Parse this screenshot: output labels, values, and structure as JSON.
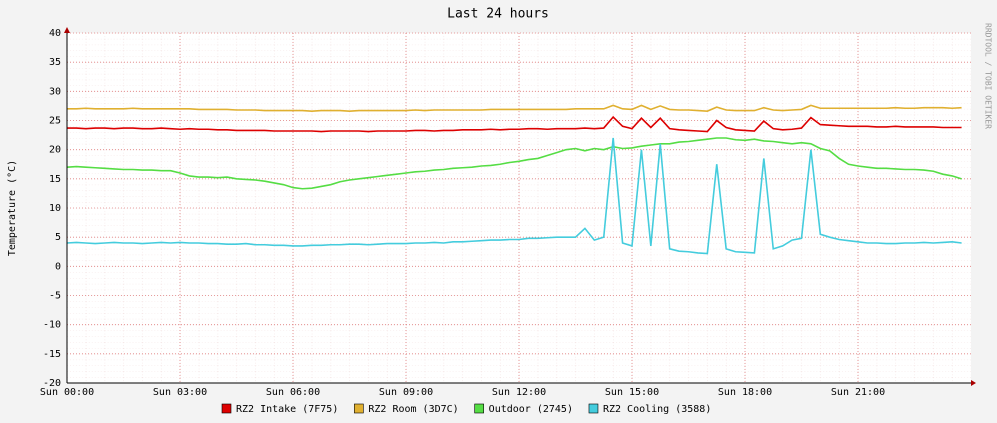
{
  "chart_data": {
    "type": "line",
    "title": "Last 24 hours",
    "y_label": "Temperature (°C)",
    "side_label": "RRDTOOL / TOBI OETIKER",
    "x": [
      0,
      0.25,
      0.5,
      0.75,
      1,
      1.25,
      1.5,
      1.75,
      2,
      2.25,
      2.5,
      2.75,
      3,
      3.25,
      3.5,
      3.75,
      4,
      4.25,
      4.5,
      4.75,
      5,
      5.25,
      5.5,
      5.75,
      6,
      6.25,
      6.5,
      6.75,
      7,
      7.25,
      7.5,
      7.75,
      8,
      8.25,
      8.5,
      8.75,
      9,
      9.25,
      9.5,
      9.75,
      10,
      10.25,
      10.5,
      10.75,
      11,
      11.25,
      11.5,
      11.75,
      12,
      12.25,
      12.5,
      12.75,
      13,
      13.25,
      13.5,
      13.75,
      14,
      14.25,
      14.5,
      14.75,
      15,
      15.25,
      15.5,
      15.75,
      16,
      16.25,
      16.5,
      16.75,
      17,
      17.25,
      17.5,
      17.75,
      18,
      18.25,
      18.5,
      18.75,
      19,
      19.25,
      19.5,
      19.75,
      20,
      20.25,
      20.5,
      20.75,
      21,
      21.25,
      21.5,
      21.75,
      22,
      22.25,
      22.5,
      22.75,
      23,
      23.25,
      23.5,
      23.75
    ],
    "xlim": [
      0,
      24
    ],
    "xticks": [
      {
        "value": 0,
        "label": "Sun 00:00"
      },
      {
        "value": 3,
        "label": "Sun 03:00"
      },
      {
        "value": 6,
        "label": "Sun 06:00"
      },
      {
        "value": 9,
        "label": "Sun 09:00"
      },
      {
        "value": 12,
        "label": "Sun 12:00"
      },
      {
        "value": 15,
        "label": "Sun 15:00"
      },
      {
        "value": 18,
        "label": "Sun 18:00"
      },
      {
        "value": 21,
        "label": "Sun 21:00"
      }
    ],
    "ylim": [
      -20,
      40
    ],
    "yticks": [
      -20,
      -15,
      -10,
      -5,
      0,
      5,
      10,
      15,
      20,
      25,
      30,
      35,
      40
    ],
    "grid": true,
    "series": [
      {
        "name": "RZ2 Intake (7F75)",
        "color": "#dd0000",
        "values": [
          23.7,
          23.7,
          23.6,
          23.7,
          23.7,
          23.6,
          23.7,
          23.7,
          23.6,
          23.6,
          23.7,
          23.6,
          23.5,
          23.6,
          23.5,
          23.5,
          23.4,
          23.4,
          23.3,
          23.3,
          23.3,
          23.3,
          23.2,
          23.2,
          23.2,
          23.2,
          23.2,
          23.1,
          23.2,
          23.2,
          23.2,
          23.2,
          23.1,
          23.2,
          23.2,
          23.2,
          23.2,
          23.3,
          23.3,
          23.2,
          23.3,
          23.3,
          23.4,
          23.4,
          23.4,
          23.5,
          23.4,
          23.5,
          23.5,
          23.6,
          23.6,
          23.5,
          23.6,
          23.6,
          23.6,
          23.7,
          23.6,
          23.7,
          25.6,
          24.0,
          23.6,
          25.4,
          23.8,
          25.4,
          23.6,
          23.4,
          23.3,
          23.2,
          23.1,
          25.0,
          23.8,
          23.4,
          23.3,
          23.2,
          24.9,
          23.6,
          23.4,
          23.5,
          23.7,
          25.5,
          24.3,
          24.2,
          24.1,
          24.0,
          24.0,
          24.0,
          23.9,
          23.9,
          24.0,
          23.9,
          23.9,
          23.9,
          23.9,
          23.8,
          23.8,
          23.8
        ]
      },
      {
        "name": "RZ2 Room (3D7C)",
        "color": "#e0b030",
        "values": [
          27.0,
          27.0,
          27.1,
          27.0,
          27.0,
          27.0,
          27.0,
          27.1,
          27.0,
          27.0,
          27.0,
          27.0,
          27.0,
          27.0,
          26.9,
          26.9,
          26.9,
          26.9,
          26.8,
          26.8,
          26.8,
          26.7,
          26.7,
          26.7,
          26.7,
          26.7,
          26.6,
          26.7,
          26.7,
          26.7,
          26.6,
          26.7,
          26.7,
          26.7,
          26.7,
          26.7,
          26.7,
          26.8,
          26.7,
          26.8,
          26.8,
          26.8,
          26.8,
          26.8,
          26.8,
          26.9,
          26.9,
          26.9,
          26.9,
          26.9,
          26.9,
          26.9,
          26.9,
          26.9,
          27.0,
          27.0,
          27.0,
          27.0,
          27.6,
          27.0,
          26.9,
          27.6,
          26.9,
          27.5,
          26.9,
          26.8,
          26.8,
          26.7,
          26.6,
          27.3,
          26.8,
          26.7,
          26.7,
          26.7,
          27.2,
          26.8,
          26.7,
          26.8,
          26.9,
          27.6,
          27.1,
          27.1,
          27.1,
          27.1,
          27.1,
          27.1,
          27.1,
          27.1,
          27.2,
          27.1,
          27.1,
          27.2,
          27.2,
          27.2,
          27.1,
          27.2
        ]
      },
      {
        "name": "Outdoor (2745)",
        "color": "#55dd44",
        "values": [
          17.0,
          17.1,
          17.0,
          16.9,
          16.8,
          16.7,
          16.6,
          16.6,
          16.5,
          16.5,
          16.4,
          16.4,
          16.0,
          15.5,
          15.3,
          15.3,
          15.2,
          15.3,
          15.0,
          14.9,
          14.8,
          14.6,
          14.3,
          14.0,
          13.5,
          13.3,
          13.4,
          13.7,
          14.0,
          14.5,
          14.8,
          15.0,
          15.2,
          15.4,
          15.6,
          15.8,
          16.0,
          16.2,
          16.3,
          16.5,
          16.6,
          16.8,
          16.9,
          17.0,
          17.2,
          17.3,
          17.5,
          17.8,
          18.0,
          18.3,
          18.5,
          19.0,
          19.5,
          20.0,
          20.2,
          19.8,
          20.2,
          20.0,
          20.5,
          20.2,
          20.3,
          20.6,
          20.8,
          21.0,
          21.0,
          21.3,
          21.4,
          21.6,
          21.8,
          22.0,
          22.0,
          21.7,
          21.6,
          21.8,
          21.5,
          21.4,
          21.2,
          21.0,
          21.2,
          21.0,
          20.2,
          19.8,
          18.5,
          17.5,
          17.2,
          17.0,
          16.8,
          16.8,
          16.7,
          16.6,
          16.6,
          16.5,
          16.3,
          15.8,
          15.5,
          15.0
        ]
      },
      {
        "name": "RZ2 Cooling (3588)",
        "color": "#44ccdd",
        "values": [
          4.0,
          4.1,
          4.0,
          3.9,
          4.0,
          4.1,
          4.0,
          4.0,
          3.9,
          4.0,
          4.1,
          4.0,
          4.1,
          4.0,
          4.0,
          3.9,
          3.9,
          3.8,
          3.8,
          3.9,
          3.7,
          3.7,
          3.6,
          3.6,
          3.5,
          3.5,
          3.6,
          3.6,
          3.7,
          3.7,
          3.8,
          3.8,
          3.7,
          3.8,
          3.9,
          3.9,
          3.9,
          4.0,
          4.0,
          4.1,
          4.0,
          4.2,
          4.2,
          4.3,
          4.4,
          4.5,
          4.5,
          4.6,
          4.6,
          4.8,
          4.8,
          4.9,
          5.0,
          5.0,
          5.0,
          6.5,
          4.5,
          5.0,
          22.0,
          4.0,
          3.5,
          20.0,
          3.5,
          21.0,
          3.0,
          2.6,
          2.5,
          2.3,
          2.2,
          17.5,
          3.0,
          2.5,
          2.4,
          2.3,
          18.5,
          3.0,
          3.5,
          4.5,
          4.8,
          20.0,
          5.5,
          5.0,
          4.6,
          4.4,
          4.2,
          4.0,
          4.0,
          3.9,
          3.9,
          4.0,
          4.0,
          4.1,
          4.0,
          4.1,
          4.2,
          4.0
        ]
      }
    ]
  }
}
